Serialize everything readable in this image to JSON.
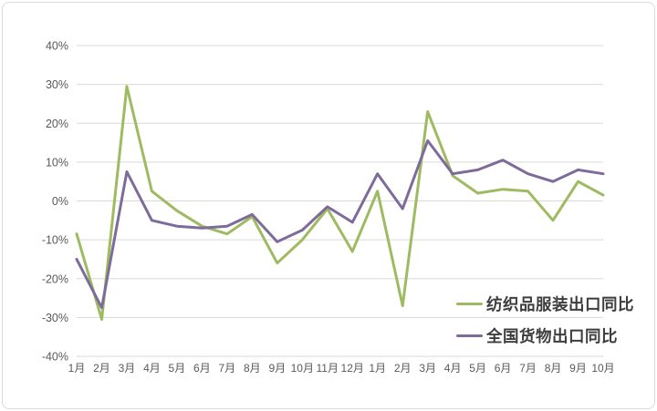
{
  "chart_data": {
    "type": "line",
    "categories": [
      "1月",
      "2月",
      "3月",
      "4月",
      "5月",
      "6月",
      "7月",
      "8月",
      "9月",
      "10月",
      "11月",
      "12月",
      "1月",
      "2月",
      "3月",
      "4月",
      "5月",
      "6月",
      "7月",
      "8月",
      "9月",
      "10月"
    ],
    "series": [
      {
        "id": "textile-apparel-export-yoy",
        "name": "纺织品服装出口同比",
        "color": "#9EBB61",
        "values": [
          -8.5,
          -30.5,
          29.5,
          2.5,
          -2.5,
          -6.5,
          -8.5,
          -4,
          -16,
          -10,
          -2,
          -13,
          2.5,
          -27,
          23,
          6.5,
          2,
          3,
          2.5,
          -5,
          5,
          1.5
        ]
      },
      {
        "id": "national-goods-export-yoy",
        "name": "全国货物出口同比",
        "color": "#7E6B9A",
        "values": [
          -15,
          -27.5,
          7.5,
          -5,
          -6.5,
          -7,
          -6.5,
          -3.5,
          -10.5,
          -7.5,
          -1.5,
          -5.5,
          7,
          -2,
          15.5,
          7,
          8,
          10.5,
          7,
          5,
          8,
          7
        ]
      }
    ],
    "title": "",
    "xlabel": "",
    "ylabel": "",
    "ylim": [
      -40,
      40
    ],
    "y_ticks": [
      {
        "value": 40,
        "label": "40%"
      },
      {
        "value": 30,
        "label": "30%"
      },
      {
        "value": 20,
        "label": "20%"
      },
      {
        "value": 10,
        "label": "10%"
      },
      {
        "value": 0,
        "label": "0%"
      },
      {
        "value": -10,
        "label": "-10%"
      },
      {
        "value": -20,
        "label": "-20%"
      },
      {
        "value": -30,
        "label": "-30%"
      },
      {
        "value": -40,
        "label": "-40%"
      }
    ],
    "grid": "horizontal",
    "legend_position": "inside-bottom-right"
  },
  "colors": {
    "grid": "#d9d9d9",
    "axis_text": "#595959",
    "card_border": "#dcdcdc",
    "background": "#ffffff"
  }
}
